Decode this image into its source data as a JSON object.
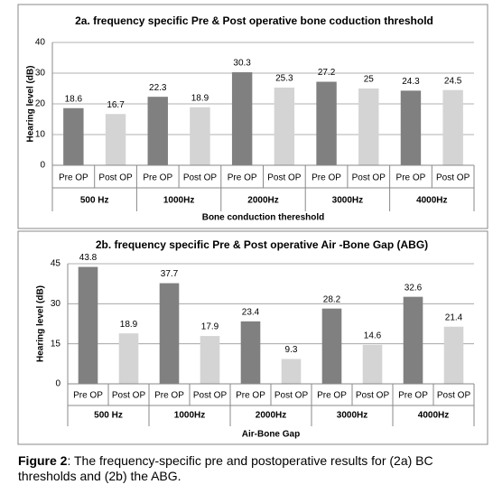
{
  "chart_data": [
    {
      "type": "bar",
      "title": "2a. frequency specific Pre & Post operative bone coduction threshold",
      "y_label": "Hearing level (dB)",
      "x_label": "Bone conduction thereshold",
      "categories": [
        "500 Hz",
        "1000Hz",
        "2000Hz",
        "3000Hz",
        "4000Hz"
      ],
      "series": [
        {
          "name": "Pre OP",
          "color": "#808080",
          "values": [
            18.6,
            22.3,
            30.3,
            27.2,
            24.3
          ]
        },
        {
          "name": "Post OP",
          "color": "#d4d4d4",
          "values": [
            16.7,
            18.9,
            25.3,
            25,
            24.5
          ]
        }
      ],
      "ylim": [
        0,
        40
      ],
      "yticks": [
        0,
        10,
        20,
        30,
        40
      ],
      "grid": true
    },
    {
      "type": "bar",
      "title": "2b. frequency specific Pre & Post operative Air -Bone Gap (ABG)",
      "y_label": "Hearing level (dB)",
      "x_label": "Air-Bone Gap",
      "categories": [
        "500 Hz",
        "1000Hz",
        "2000Hz",
        "3000Hz",
        "4000Hz"
      ],
      "series": [
        {
          "name": "Pre OP",
          "color": "#808080",
          "values": [
            43.8,
            37.7,
            23.4,
            28.2,
            32.6
          ]
        },
        {
          "name": "Post OP",
          "color": "#d4d4d4",
          "values": [
            18.9,
            17.9,
            9.3,
            14.6,
            21.4
          ]
        }
      ],
      "ylim": [
        0,
        45
      ],
      "yticks": [
        0,
        15,
        30,
        45
      ],
      "grid": true
    }
  ],
  "caption": {
    "label": "Figure 2",
    "text": ": The frequency-specific pre and postoperative results for (2a) BC thresholds and (2b) the ABG."
  }
}
